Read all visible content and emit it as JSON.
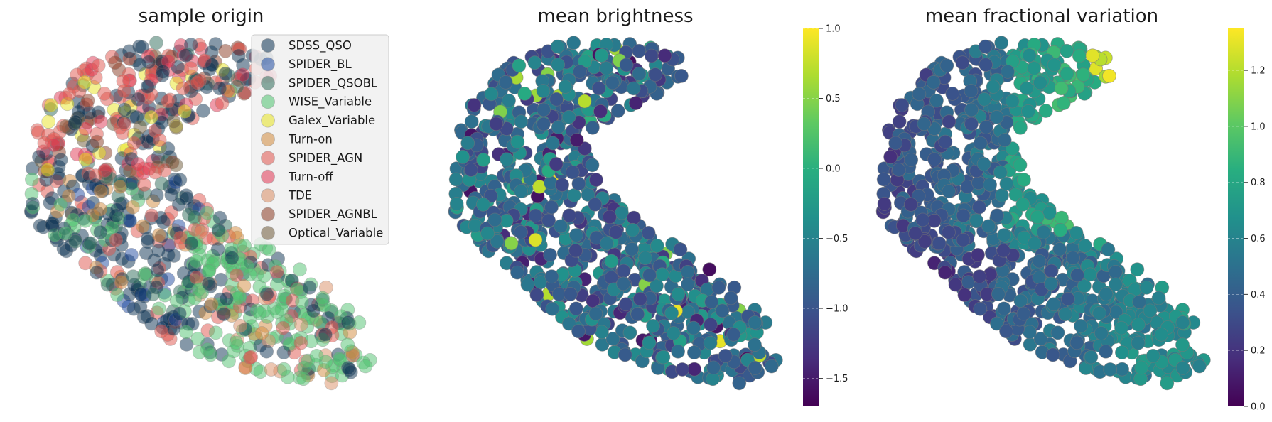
{
  "chart_data": [
    {
      "type": "scatter",
      "title": "sample origin",
      "legend_position": "top-right",
      "axes_visible": false,
      "series": [
        {
          "name": "SDSS_QSO",
          "color": "#0b3152"
        },
        {
          "name": "SPIDER_BL",
          "color": "#1f4aa0"
        },
        {
          "name": "SPIDER_QSOBL",
          "color": "#2e6b5a"
        },
        {
          "name": "WISE_Variable",
          "color": "#4fc26f"
        },
        {
          "name": "Galex_Variable",
          "color": "#e7e31f"
        },
        {
          "name": "Turn-on",
          "color": "#d28a3c"
        },
        {
          "name": "SPIDER_AGN",
          "color": "#e0544c"
        },
        {
          "name": "Turn-off",
          "color": "#e03552"
        },
        {
          "name": "TDE",
          "color": "#d98d63"
        },
        {
          "name": "SPIDER_AGNBL",
          "color": "#8a3a22"
        },
        {
          "name": "Optical_Variable",
          "color": "#6e5a38"
        }
      ]
    },
    {
      "type": "scatter",
      "title": "mean brightness",
      "axes_visible": false,
      "colorbar": {
        "colormap": "viridis",
        "range": [
          -1.7,
          1.0
        ],
        "ticks": [
          "1.0",
          "0.5",
          "0.0",
          "−0.5",
          "−1.0",
          "−1.5"
        ],
        "tick_values": [
          1.0,
          0.5,
          0.0,
          -0.5,
          -1.0,
          -1.5
        ]
      }
    },
    {
      "type": "scatter",
      "title": "mean fractional variation",
      "axes_visible": false,
      "colorbar": {
        "colormap": "viridis",
        "range": [
          0.0,
          1.35
        ],
        "ticks": [
          "1.2",
          "1.0",
          "0.8",
          "0.6",
          "0.4",
          "0.2",
          "0.0"
        ],
        "tick_values": [
          1.2,
          1.0,
          0.8,
          0.6,
          0.4,
          0.2,
          0.0
        ]
      }
    }
  ]
}
